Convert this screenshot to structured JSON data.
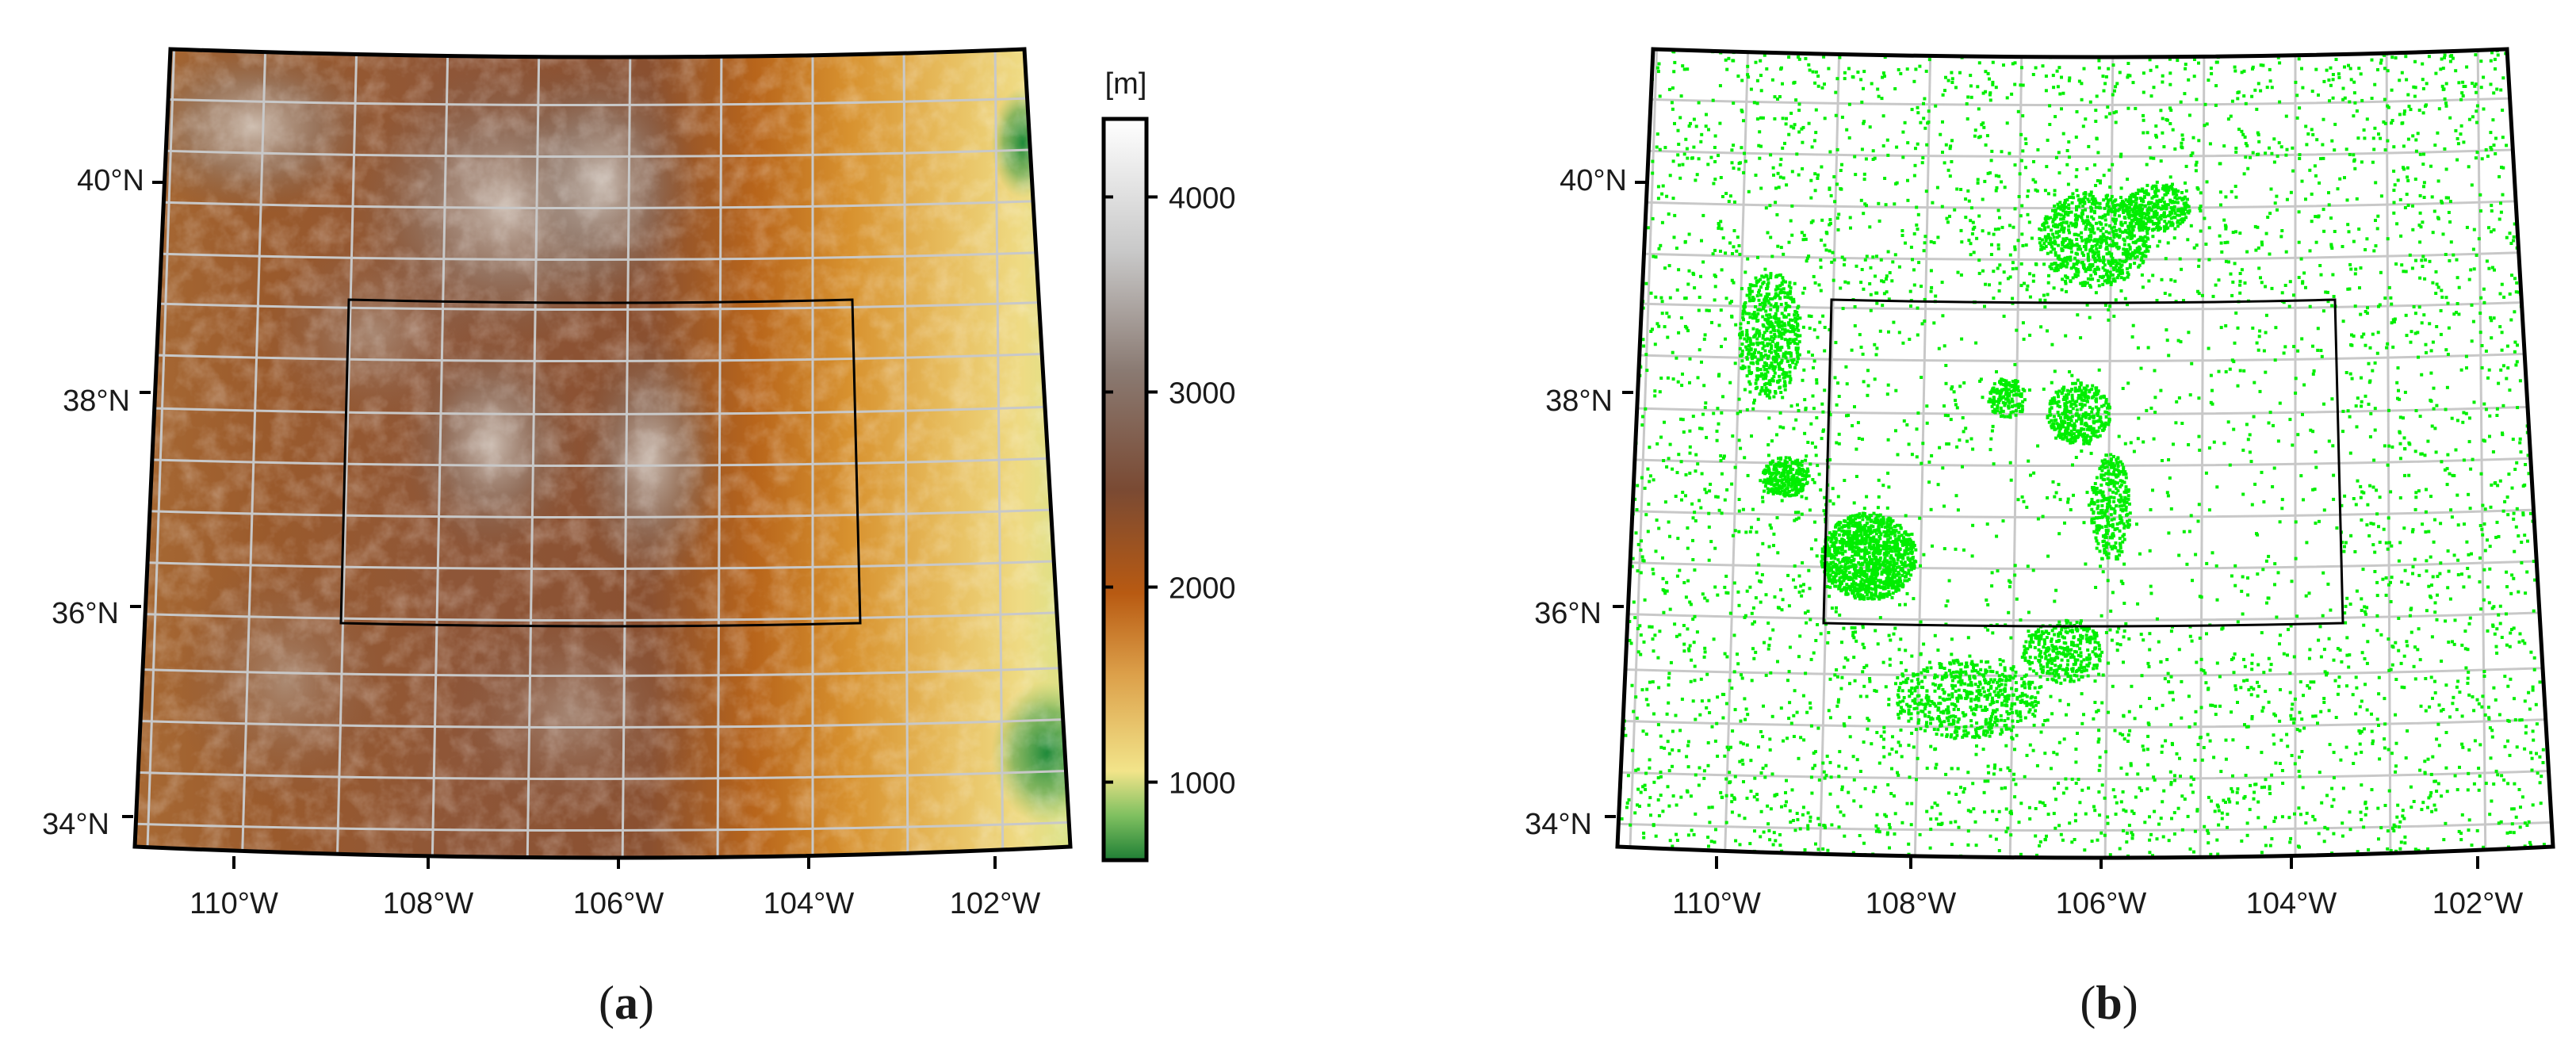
{
  "panels": [
    {
      "id": "a",
      "caption": "(a)",
      "caption_letter": "a",
      "content": "elevation",
      "lat_labels": [
        "40°N",
        "38°N",
        "36°N",
        "34°N"
      ],
      "lon_labels": [
        "110°W",
        "108°W",
        "106°W",
        "104°W",
        "102°W"
      ],
      "colorbar": {
        "unit_label": "[m]",
        "tick_labels": [
          "4000",
          "3000",
          "2000",
          "1000"
        ],
        "tick_values": [
          4000,
          3000,
          2000,
          1000
        ],
        "range": [
          600,
          4400
        ],
        "colors": [
          "#2e8b3a",
          "#f2e48a",
          "#dca04a",
          "#b85a12",
          "#7a4a33",
          "#8a8a8a",
          "#ffffff"
        ]
      }
    },
    {
      "id": "b",
      "caption": "(b)",
      "caption_letter": "b",
      "content": "stations",
      "lat_labels": [
        "40°N",
        "38°N",
        "36°N",
        "34°N"
      ],
      "lon_labels": [
        "110°W",
        "108°W",
        "106°W",
        "104°W",
        "102°W"
      ],
      "point_color": "#00ee00"
    }
  ],
  "colors": {
    "graticule": "#c8c8c8",
    "frame": "#000000",
    "inner_box": "#000000"
  }
}
